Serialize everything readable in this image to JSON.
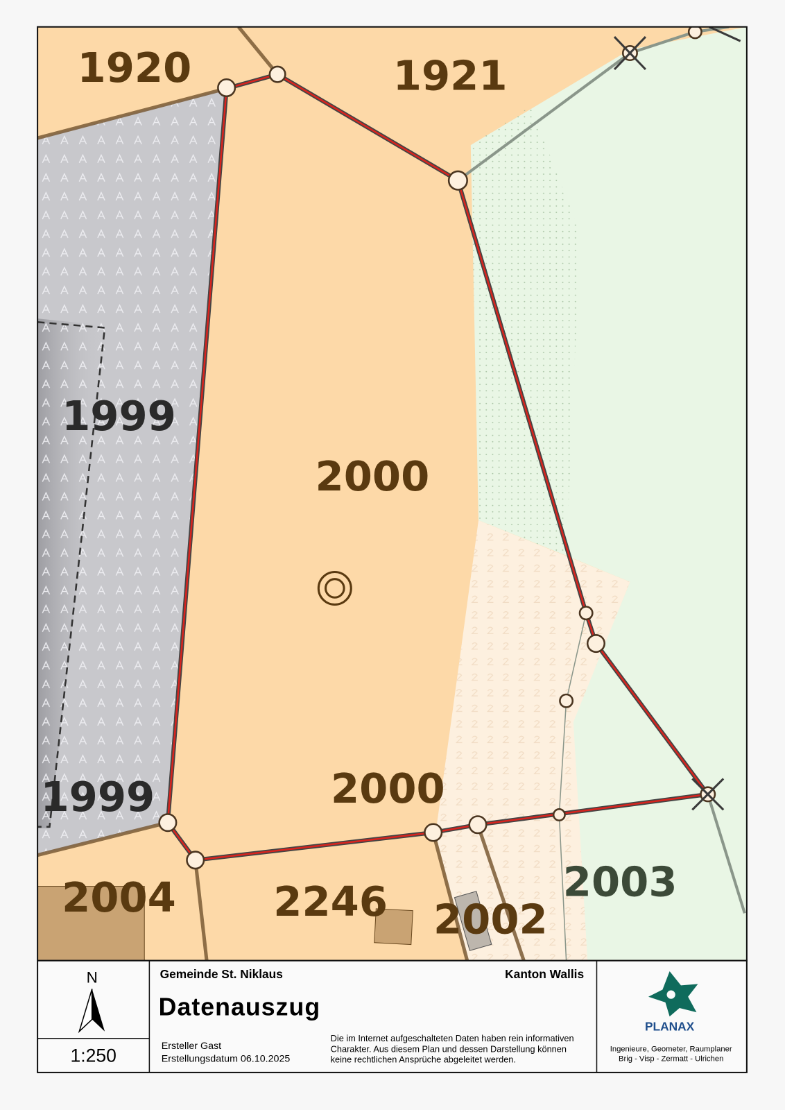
{
  "map": {
    "parcels": [
      "1920",
      "1921",
      "1999",
      "1999",
      "2000",
      "2000",
      "2004",
      "2246",
      "2002",
      "2003"
    ]
  },
  "legend": {
    "north": "N",
    "scale": "1:250"
  },
  "header": {
    "municipality": "Gemeinde St. Niklaus",
    "canton": "Kanton Wallis",
    "title": "Datenauszug",
    "author": "Ersteller Gast",
    "date": "Erstellungsdatum 06.10.2025",
    "disclaimer": [
      "Die im Internet aufgeschalteten Daten haben rein informativen",
      "Charakter. Aus diesem Plan und dessen Darstellung können",
      "keine rechtlichen Ansprüche abgeleitet werden."
    ]
  },
  "company": {
    "name": "PLANAX",
    "tagline": "Ingenieure, Geometer, Raumplaner",
    "locations": "Brig - Visp - Zermatt - Ulrichen"
  }
}
